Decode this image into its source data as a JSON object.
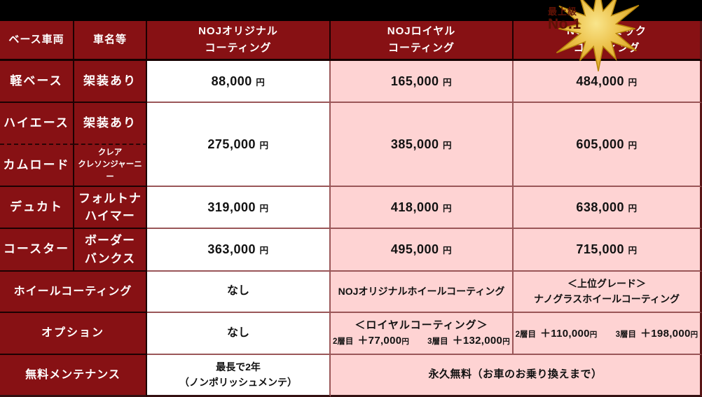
{
  "colors": {
    "cell_red": "#871114",
    "cell_pink": "#fed3d3",
    "cell_white": "#ffffff",
    "grid_dark": "#1c0102",
    "grid_light": "#9a5658",
    "badge_gold": "#e8b83a",
    "badge_text": "#5f1205"
  },
  "badge": {
    "line1": "最上級",
    "line2": "No.1"
  },
  "header": {
    "base": "ベース車両",
    "name": "車名等",
    "original_l1": "NOJオリジナル",
    "original_l2": "コーティング",
    "royal_l1": "NOJロイヤル",
    "royal_l2": "コーティング",
    "ceramic_l1": "NOJセラミック",
    "ceramic_l2": "コーティング"
  },
  "rows": {
    "kei": {
      "base": "軽ベース",
      "name": "架装あり",
      "original": "88,000 円",
      "royal": "165,000 円",
      "ceramic": "484,000 円"
    },
    "hiace": {
      "base": "ハイエース",
      "name": "架装あり"
    },
    "camroad": {
      "base": "カムロード",
      "name_l1": "クレア",
      "name_l2": "クレソンジャーニー"
    },
    "hiace_camroad_prices": {
      "original": "275,000 円",
      "royal": "385,000 円",
      "ceramic": "605,000 円"
    },
    "ducato": {
      "base": "デュカト",
      "name_l1": "フォルトナ",
      "name_l2": "ハイマー",
      "original": "319,000 円",
      "royal": "418,000 円",
      "ceramic": "638,000 円"
    },
    "coaster": {
      "base": "コースター",
      "name_l1": "ボーダー",
      "name_l2": "バンクス",
      "original": "363,000 円",
      "royal": "495,000 円",
      "ceramic": "715,000 円"
    },
    "wheel": {
      "label": "ホイールコーティング",
      "original": "なし",
      "royal": "NOJオリジナルホイールコーティング",
      "ceramic_l1": "＜上位グレード＞",
      "ceramic_l2": "ナノグラスホイールコーティング"
    },
    "option": {
      "label": "オプション",
      "original": "なし",
      "royal_title": "＜ロイヤルコーティング＞",
      "royal_item1_label": "2層目",
      "royal_item1_price": "＋77,000円",
      "royal_item2_label": "3層目",
      "royal_item2_price": "＋132,000円",
      "ceramic_item1_label": "2層目",
      "ceramic_item1_price": "＋110,000円",
      "ceramic_item2_label": "3層目",
      "ceramic_item2_price": "＋198,000円"
    },
    "maintenance": {
      "label": "無料メンテナンス",
      "original_l1": "最長で2年",
      "original_l2": "（ノンポリッシュメンテ）",
      "shared": "永久無料（お車のお乗り換えまで）"
    }
  }
}
